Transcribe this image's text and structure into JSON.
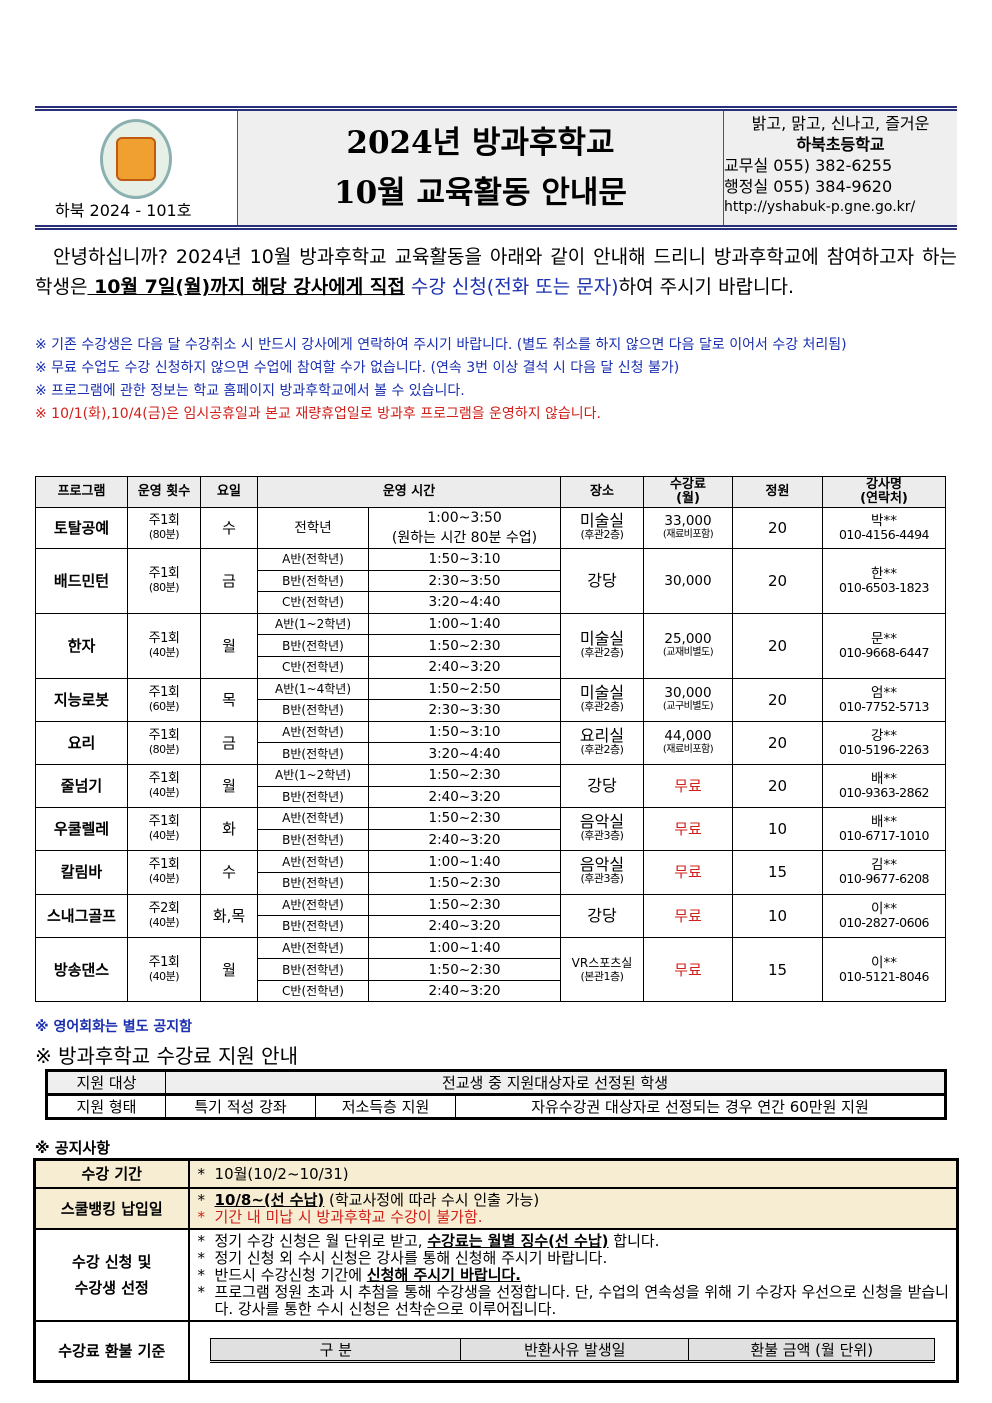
{
  "header": {
    "doc_number": "하북 2024 - 101호",
    "title_line1": "2024년 방과후학교",
    "title_line2": "10월 교육활동 안내문",
    "slogan": "밝고, 맑고, 신나고, 즐거운",
    "school": "하북초등학교",
    "office1": "교무실 055) 382-6255",
    "office2": "행정실 055) 384-9620",
    "url": "http://yshabuk-p.gne.go.kr/"
  },
  "intro": {
    "p1": "안녕하십니까? 2024년 10월 방과후학교 교육활동을 아래와 같이 안내해 드리니 방과후학교에 참여하고자 하는 학생은",
    "deadline": " 10월 7일(월)까지 해당 강사에게 직접",
    "apply": " 수강 신청(전화 또는 문자)",
    "p2": "하여 주시기 바랍니다."
  },
  "notes": [
    "※ 기존 수강생은 다음 달 수강취소 시 반드시 강사에게 연락하여 주시기 바랍니다. (별도 취소를 하지 않으면 다음 달로 이어서 수강 처리됨)",
    "※ 무료 수업도 수강 신청하지 않으면 수업에 참여할 수가 없습니다. (연속 3번 이상 결석 시 다음 달 신청 불가)",
    "※ 프로그램에 관한 정보는 학교 홈페이지 방과후학교에서 볼 수 있습니다.",
    "※ 10/1(화),10/4(금)은 임시공휴일과 본교 재량휴업일로 방과후 프로그램을 운영하지 않습니다."
  ],
  "table": {
    "headers": [
      "프로그램",
      "운영 횟수",
      "요일",
      "운영 시간",
      "장소",
      "수강료\n(월)",
      "정원",
      "강사명\n(연락처)"
    ],
    "rows": [
      {
        "name": "토탈공예",
        "freq": "주1회",
        "dur": "(80분)",
        "day": "수",
        "classes": [
          {
            "c": "전학년",
            "t": "1:00~3:50\n(원하는 시간 80분 수업)"
          }
        ],
        "place": "미술실",
        "floor": "(후관2층)",
        "fee": "33,000",
        "fee_note": "(재료비포함)",
        "cap": "20",
        "teacher": "박**",
        "phone": "010-4156-4494"
      },
      {
        "name": "배드민턴",
        "freq": "주1회",
        "dur": "(80분)",
        "day": "금",
        "classes": [
          {
            "c": "A반(전학년)",
            "t": "1:50~3:10"
          },
          {
            "c": "B반(전학년)",
            "t": "2:30~3:50"
          },
          {
            "c": "C반(전학년)",
            "t": "3:20~4:40"
          }
        ],
        "place": "강당",
        "floor": "",
        "fee": "30,000",
        "fee_note": "",
        "cap": "20",
        "teacher": "한**",
        "phone": "010-6503-1823"
      },
      {
        "name": "한자",
        "freq": "주1회",
        "dur": "(40분)",
        "day": "월",
        "classes": [
          {
            "c": "A반(1~2학년)",
            "t": "1:00~1:40"
          },
          {
            "c": "B반(전학년)",
            "t": "1:50~2:30"
          },
          {
            "c": "C반(전학년)",
            "t": "2:40~3:20"
          }
        ],
        "place": "미술실",
        "floor": "(후관2층)",
        "fee": "25,000",
        "fee_note": "(교재비별도)",
        "cap": "20",
        "teacher": "문**",
        "phone": "010-9668-6447"
      },
      {
        "name": "지능로봇",
        "freq": "주1회",
        "dur": "(60분)",
        "day": "목",
        "classes": [
          {
            "c": "A반(1~4학년)",
            "t": "1:50~2:50"
          },
          {
            "c": "B반(전학년)",
            "t": "2:30~3:30"
          }
        ],
        "place": "미술실",
        "floor": "(후관2층)",
        "fee": "30,000",
        "fee_note": "(교구비별도)",
        "cap": "20",
        "teacher": "엄**",
        "phone": "010-7752-5713"
      },
      {
        "name": "요리",
        "freq": "주1회",
        "dur": "(80분)",
        "day": "금",
        "classes": [
          {
            "c": "A반(전학년)",
            "t": "1:50~3:10"
          },
          {
            "c": "B반(전학년)",
            "t": "3:20~4:40"
          }
        ],
        "place": "요리실",
        "floor": "(후관2층)",
        "fee": "44,000",
        "fee_note": "(재료비포함)",
        "cap": "20",
        "teacher": "강**",
        "phone": "010-5196-2263"
      },
      {
        "name": "줄넘기",
        "freq": "주1회",
        "dur": "(40분)",
        "day": "월",
        "classes": [
          {
            "c": "A반(1~2학년)",
            "t": "1:50~2:30"
          },
          {
            "c": "B반(전학년)",
            "t": "2:40~3:20"
          }
        ],
        "place": "강당",
        "floor": "",
        "fee": "무료",
        "fee_note": "",
        "cap": "20",
        "teacher": "배**",
        "phone": "010-9363-2862"
      },
      {
        "name": "우쿨렐레",
        "freq": "주1회",
        "dur": "(40분)",
        "day": "화",
        "classes": [
          {
            "c": "A반(전학년)",
            "t": "1:50~2:30"
          },
          {
            "c": "B반(전학년)",
            "t": "2:40~3:20"
          }
        ],
        "place": "음악실",
        "floor": "(후관3층)",
        "fee": "무료",
        "fee_note": "",
        "cap": "10",
        "teacher": "배**",
        "phone": "010-6717-1010"
      },
      {
        "name": "칼림바",
        "freq": "주1회",
        "dur": "(40분)",
        "day": "수",
        "classes": [
          {
            "c": "A반(전학년)",
            "t": "1:00~1:40"
          },
          {
            "c": "B반(전학년)",
            "t": "1:50~2:30"
          }
        ],
        "place": "음악실",
        "floor": "(후관3층)",
        "fee": "무료",
        "fee_note": "",
        "cap": "15",
        "teacher": "김**",
        "phone": "010-9677-6208"
      },
      {
        "name": "스내그골프",
        "freq": "주2회",
        "dur": "(40분)",
        "day": "화,목",
        "classes": [
          {
            "c": "A반(전학년)",
            "t": "1:50~2:30"
          },
          {
            "c": "B반(전학년)",
            "t": "2:40~3:20"
          }
        ],
        "place": "강당",
        "floor": "",
        "fee": "무료",
        "fee_note": "",
        "cap": "10",
        "teacher": "이**",
        "phone": "010-2827-0606"
      },
      {
        "name": "방송댄스",
        "freq": "주1회",
        "dur": "(40분)",
        "day": "월",
        "classes": [
          {
            "c": "A반(전학년)",
            "t": "1:00~1:40"
          },
          {
            "c": "B반(전학년)",
            "t": "1:50~2:30"
          },
          {
            "c": "C반(전학년)",
            "t": "2:40~3:20"
          }
        ],
        "place": "VR스포츠실",
        "floor": "(본관1층)",
        "fee": "무료",
        "fee_note": "",
        "cap": "15",
        "teacher": "이**",
        "phone": "010-5121-8046"
      }
    ]
  },
  "english_note": "※ 영어회화는 별도 공지함",
  "support": {
    "heading": "※ 방과후학교 수강료 지원 안내",
    "target_label": "지원 대상",
    "target_value": "전교생 중 지원대상자로 선정된 학생",
    "type_label": "지원 형태",
    "types": [
      "특기 적성 강좌",
      "저소득층 지원",
      "자유수강권 대상자로 선정되는 경우 연간 60만원 지원"
    ]
  },
  "notice": {
    "heading": "※ 공지사항",
    "period_label": "수강 기간",
    "period": "10월(10/2~10/31)",
    "pay_label": "스쿨뱅킹 납입일",
    "pay1_bold": "10/8~(선 수납)",
    "pay1_rest": " (학교사정에 따라 수시 인출 가능)",
    "pay2": "기간 내 미납 시 방과후학교 수강이 불가함.",
    "apply_label1": "수강 신청 및",
    "apply_label2": "수강생 선정",
    "apply1a": "정기 수강 신청은 월 단위로 받고, ",
    "apply1b": "수강료는 월별 징수(선 수납)",
    "apply1c": " 합니다.",
    "apply2": "정기 신청 외 수시 신청은 강사를 통해 신청해 주시기 바랍니다.",
    "apply3a": "반드시 수강신청 기간에 ",
    "apply3b": "신청해 주시기 바랍니다.",
    "apply4": "프로그램 정원 초과 시 추첨을 통해 수강생을 선정합니다. 단, 수업의 연속성을 위해 기 수강자 우선으로 신청을 받습니다. 강사를 통한 수시 신청은 선착순으로 이루어집니다.",
    "refund_label": "수강료 환불 기준",
    "refund_headers": [
      "구   분",
      "반환사유 발생일",
      "환불 금액 (월 단위)"
    ],
    "bullet": "*"
  },
  "colors": {
    "accent_blue": "#1a2fb0",
    "red": "#d0201a",
    "header_rule": "#2a2f7a",
    "beige": "#f6edd2"
  }
}
